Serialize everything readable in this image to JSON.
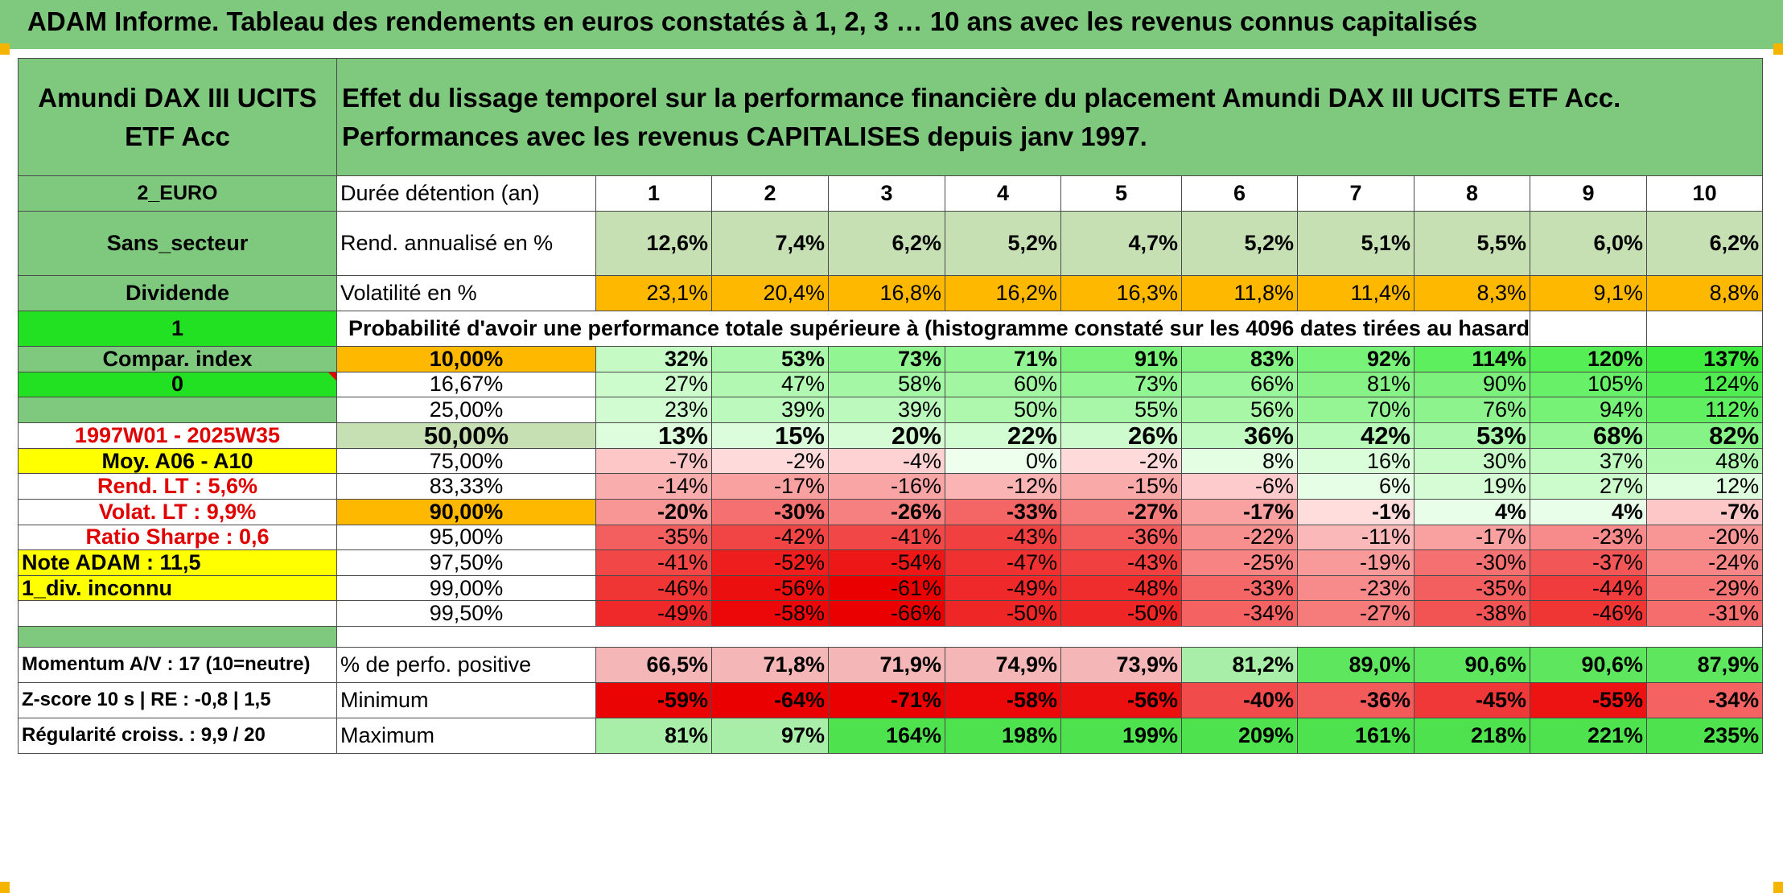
{
  "title": "ADAM Informe. Tableau des rendements en euros constatés à 1, 2, 3 … 10 ans avec les revenus connus capitalisés",
  "fund": {
    "name": "Amundi DAX III UCITS ETF Acc",
    "description": "Effet du lissage temporel sur la performance financière du placement Amundi DAX III UCITS ETF Acc. Performances avec les revenus CAPITALISES depuis janv 1997."
  },
  "left_panel": {
    "currency": "2_EURO",
    "sector": "Sans_secteur",
    "income_type": "Dividende",
    "flag1": "1",
    "compar_index": "Compar. index",
    "flag0": "0",
    "period": "1997W01 - 2025W35",
    "moy": "Moy. A06 - A10",
    "rend_lt": "Rend. LT :   5,6%",
    "volat_lt": "Volat. LT :   9,9%",
    "sharpe": "Ratio Sharpe :    0,6",
    "note": "Note ADAM : 11,5",
    "div_unknown": "1_div. inconnu",
    "momentum": "Momentum A/V : 17 (10=neutre)",
    "zscore": "Z-score 10 s | RE : -0,8 | 1,5",
    "regularite": "Régularité croiss. : 9,9 / 20"
  },
  "table": {
    "holding_label": "Durée détention (an)",
    "years": [
      "1",
      "2",
      "3",
      "4",
      "5",
      "6",
      "7",
      "8",
      "9",
      "10"
    ],
    "rend_label": "Rend. annualisé en %",
    "rend": [
      "12,6%",
      "7,4%",
      "6,2%",
      "5,2%",
      "4,7%",
      "5,2%",
      "5,1%",
      "5,5%",
      "6,0%",
      "6,2%"
    ],
    "vol_label": "Volatilité en %",
    "vol": [
      "23,1%",
      "20,4%",
      "16,8%",
      "16,2%",
      "16,3%",
      "11,8%",
      "11,4%",
      "8,3%",
      "9,1%",
      "8,8%"
    ],
    "prob_label": "Probabilité d'avoir une performance totale supérieure à (histogramme constaté sur les 4096 dates tirées au hasard)",
    "quantiles": [
      {
        "p": "10,00%",
        "v": [
          "32%",
          "53%",
          "73%",
          "71%",
          "91%",
          "83%",
          "92%",
          "114%",
          "120%",
          "137%"
        ]
      },
      {
        "p": "16,67%",
        "v": [
          "27%",
          "47%",
          "58%",
          "60%",
          "73%",
          "66%",
          "81%",
          "90%",
          "105%",
          "124%"
        ]
      },
      {
        "p": "25,00%",
        "v": [
          "23%",
          "39%",
          "39%",
          "50%",
          "55%",
          "56%",
          "70%",
          "76%",
          "94%",
          "112%"
        ]
      },
      {
        "p": "50,00%",
        "v": [
          "13%",
          "15%",
          "20%",
          "22%",
          "26%",
          "36%",
          "42%",
          "53%",
          "68%",
          "82%"
        ]
      },
      {
        "p": "75,00%",
        "v": [
          "-7%",
          "-2%",
          "-4%",
          "0%",
          "-2%",
          "8%",
          "16%",
          "30%",
          "37%",
          "48%"
        ]
      },
      {
        "p": "83,33%",
        "v": [
          "-14%",
          "-17%",
          "-16%",
          "-12%",
          "-15%",
          "-6%",
          "6%",
          "19%",
          "27%",
          "12%"
        ]
      },
      {
        "p": "90,00%",
        "v": [
          "-20%",
          "-30%",
          "-26%",
          "-33%",
          "-27%",
          "-17%",
          "-1%",
          "4%",
          "4%",
          "-7%"
        ]
      },
      {
        "p": "95,00%",
        "v": [
          "-35%",
          "-42%",
          "-41%",
          "-43%",
          "-36%",
          "-22%",
          "-11%",
          "-17%",
          "-23%",
          "-20%"
        ]
      },
      {
        "p": "97,50%",
        "v": [
          "-41%",
          "-52%",
          "-54%",
          "-47%",
          "-43%",
          "-25%",
          "-19%",
          "-30%",
          "-37%",
          "-24%"
        ]
      },
      {
        "p": "99,00%",
        "v": [
          "-46%",
          "-56%",
          "-61%",
          "-49%",
          "-48%",
          "-33%",
          "-23%",
          "-35%",
          "-44%",
          "-29%"
        ]
      },
      {
        "p": "99,50%",
        "v": [
          "-49%",
          "-58%",
          "-66%",
          "-50%",
          "-50%",
          "-34%",
          "-27%",
          "-38%",
          "-46%",
          "-31%"
        ]
      }
    ],
    "pos_label": "% de perfo. positive",
    "pos": [
      "66,5%",
      "71,8%",
      "71,9%",
      "74,9%",
      "73,9%",
      "81,2%",
      "89,0%",
      "90,6%",
      "90,6%",
      "87,9%"
    ],
    "min_label": "Minimum",
    "min": [
      "-59%",
      "-64%",
      "-71%",
      "-58%",
      "-56%",
      "-40%",
      "-36%",
      "-45%",
      "-55%",
      "-34%"
    ],
    "max_label": "Maximum",
    "max": [
      "81%",
      "97%",
      "164%",
      "198%",
      "199%",
      "209%",
      "161%",
      "218%",
      "221%",
      "235%"
    ]
  },
  "colors": {
    "header_green": "#7fc97f",
    "bright_green": "#22e022",
    "yellow": "#ffff00",
    "orange": "#ffb800",
    "red_text": "#e00000"
  }
}
